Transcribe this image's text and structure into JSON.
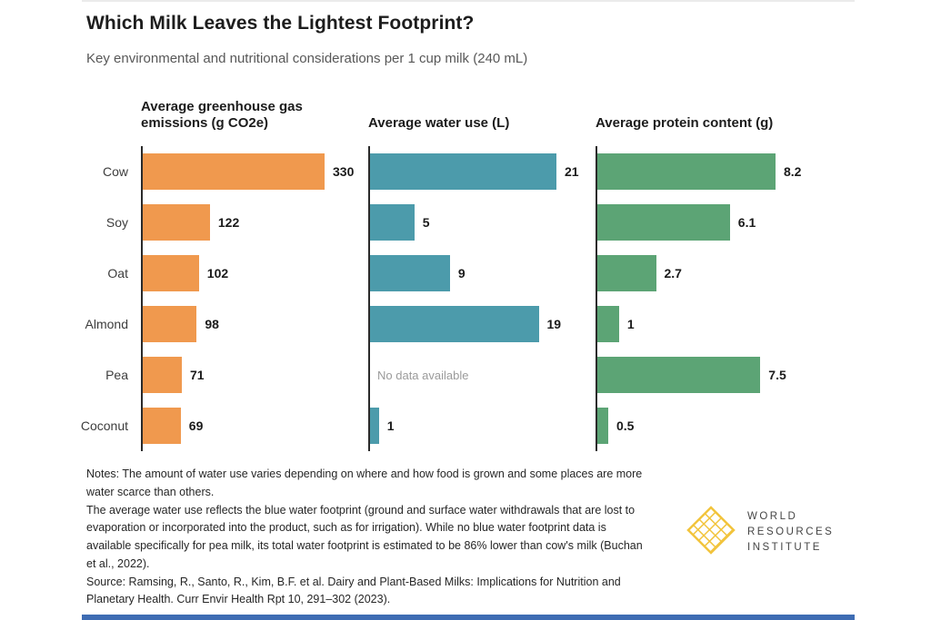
{
  "header": {
    "title": "Which Milk Leaves the Lightest Footprint?",
    "subtitle": "Key environmental and nutritional considerations per 1 cup milk (240 mL)"
  },
  "chart_data": {
    "type": "bar",
    "orientation": "horizontal",
    "categories": [
      "Cow",
      "Soy",
      "Oat",
      "Almond",
      "Pea",
      "Coconut"
    ],
    "panels": [
      {
        "title": "Average greenhouse gas emissions (g CO2e)",
        "unit": "g CO2e",
        "color": "#F0994E",
        "axis_max": 330,
        "values": [
          330,
          122,
          102,
          98,
          71,
          69
        ],
        "value_labels": [
          "330",
          "122",
          "102",
          "98",
          "71",
          "69"
        ]
      },
      {
        "title": "Average water use (L)",
        "unit": "L",
        "color": "#4C9BAB",
        "axis_max": 21,
        "values": [
          21,
          5,
          9,
          19,
          null,
          1
        ],
        "value_labels": [
          "21",
          "5",
          "9",
          "19",
          null,
          "1"
        ],
        "no_data_text": "No data available"
      },
      {
        "title": "Average protein content (g)",
        "unit": "g",
        "color": "#5CA475",
        "axis_max": 8.2,
        "values": [
          8.2,
          6.1,
          2.7,
          1,
          7.5,
          0.5
        ],
        "value_labels": [
          "8.2",
          "6.1",
          "2.7",
          "1",
          "7.5",
          "0.5"
        ]
      }
    ]
  },
  "notes": {
    "paragraphs": [
      "Notes: The amount of water use varies depending on where and how food is grown and some places are more water scarce than others.",
      "The average water use reflects the blue water footprint (ground and surface water withdrawals that are lost to evaporation or incorporated into the product, such as for irrigation). While no blue water footprint data is available specifically for pea milk, its total water footprint is estimated to be 86% lower than cow's milk (Buchan et al., 2022).",
      "Source: Ramsing, R., Santo, R., Kim, B.F. et al. Dairy and Plant-Based Milks: Implications for Nutrition and Planetary Health. Curr Envir Health Rpt 10, 291–302 (2023)."
    ]
  },
  "logo": {
    "org_lines": [
      "WORLD",
      "RESOURCES",
      "INSTITUTE"
    ],
    "gold": "#F2C43D"
  },
  "footer": {
    "bar_color": "#3E6CB3"
  }
}
